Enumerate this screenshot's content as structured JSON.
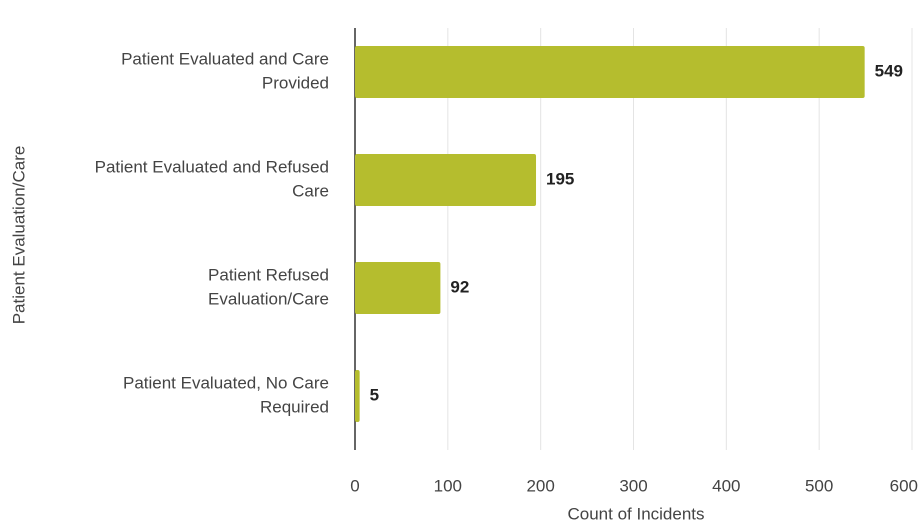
{
  "chart_data": {
    "type": "bar",
    "orientation": "horizontal",
    "categories": [
      [
        "Patient Evaluated and Care",
        "Provided"
      ],
      [
        "Patient Evaluated and Refused",
        "Care"
      ],
      [
        "Patient Refused",
        "Evaluation/Care"
      ],
      [
        "Patient Evaluated, No Care",
        "Required"
      ]
    ],
    "values": [
      549,
      195,
      92,
      5
    ],
    "color": "#b5bd2e",
    "xlabel": "Count of Incidents",
    "ylabel": "Patient Evaluation/Care",
    "xlim": [
      0,
      600
    ],
    "xticks": [
      0,
      100,
      200,
      300,
      400,
      500,
      600
    ],
    "grid": true
  }
}
